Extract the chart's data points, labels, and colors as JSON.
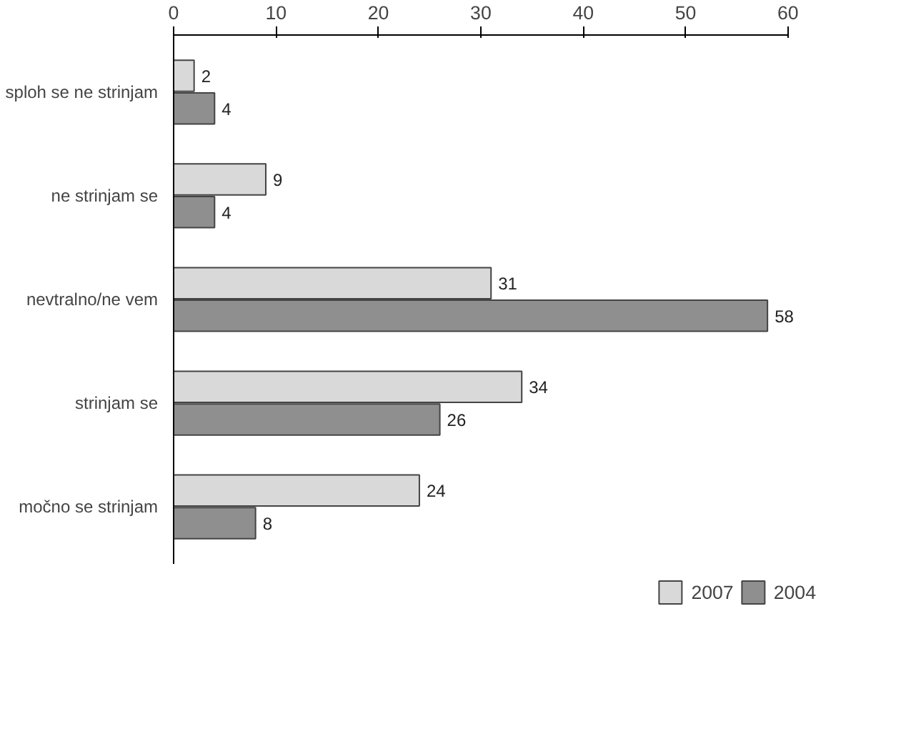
{
  "chart_data": {
    "type": "bar",
    "orientation": "horizontal",
    "categories": [
      "sploh se ne strinjam",
      "ne strinjam se",
      "nevtralno/ne vem",
      "strinjam se",
      "močno se strinjam"
    ],
    "series": [
      {
        "name": "2007",
        "color": "#d9d9d9",
        "values": [
          2,
          9,
          31,
          34,
          24
        ]
      },
      {
        "name": "2004",
        "color": "#8f8f8f",
        "values": [
          4,
          4,
          58,
          26,
          8
        ]
      }
    ],
    "xlim": [
      0,
      60
    ],
    "xticks": [
      0,
      10,
      20,
      30,
      40,
      50,
      60
    ],
    "data_labels": true,
    "grid": false,
    "legend": "bottom"
  }
}
